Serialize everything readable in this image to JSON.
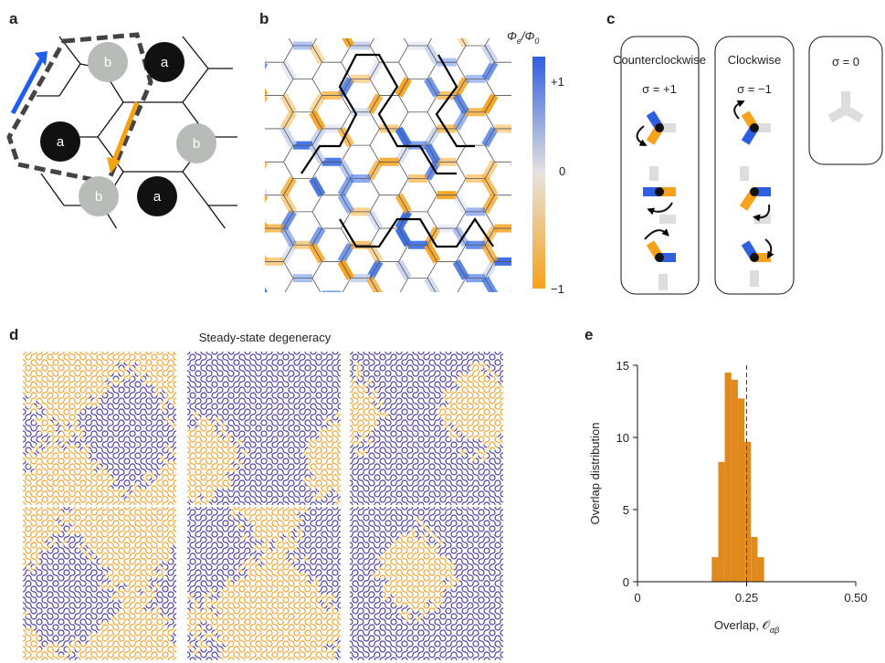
{
  "panel_labels": [
    "a",
    "b",
    "c",
    "d",
    "e"
  ],
  "panel_a": {
    "sites": [
      "b",
      "a",
      "a",
      "b",
      "b",
      "a"
    ]
  },
  "panel_b": {
    "colorbar_label": [
      "Φ",
      "e",
      "/Φ",
      "0"
    ],
    "colorbar_ticks": [
      "+1",
      "0",
      "−1"
    ]
  },
  "panel_c": {
    "boxes": [
      {
        "title": "Counterclockwise",
        "sigma": "σ = +1"
      },
      {
        "title": "Clockwise",
        "sigma": "σ = −1"
      },
      {
        "sigma": "σ = 0"
      }
    ]
  },
  "panel_d": {
    "title": "Steady-state degeneracy"
  },
  "chart_data": {
    "type": "histogram",
    "xlabel": [
      "Overlap, 𝒪",
      "αβ"
    ],
    "ylabel": "Overlap distribution",
    "bins": [
      0.17,
      0.185,
      0.2,
      0.215,
      0.23,
      0.245,
      0.26,
      0.275,
      0.29
    ],
    "values": [
      1.7,
      8.3,
      14.5,
      14.0,
      12.7,
      9.7,
      3.1,
      1.7
    ],
    "color": "#e08a1e",
    "xlim": [
      0,
      0.5
    ],
    "ylim": [
      0,
      15
    ],
    "xticks": [
      0,
      0.25,
      {
        "value": 0.5,
        "label": "0.50"
      }
    ],
    "yticks": [
      0,
      5,
      10,
      15
    ],
    "reference_line": 0.25
  }
}
